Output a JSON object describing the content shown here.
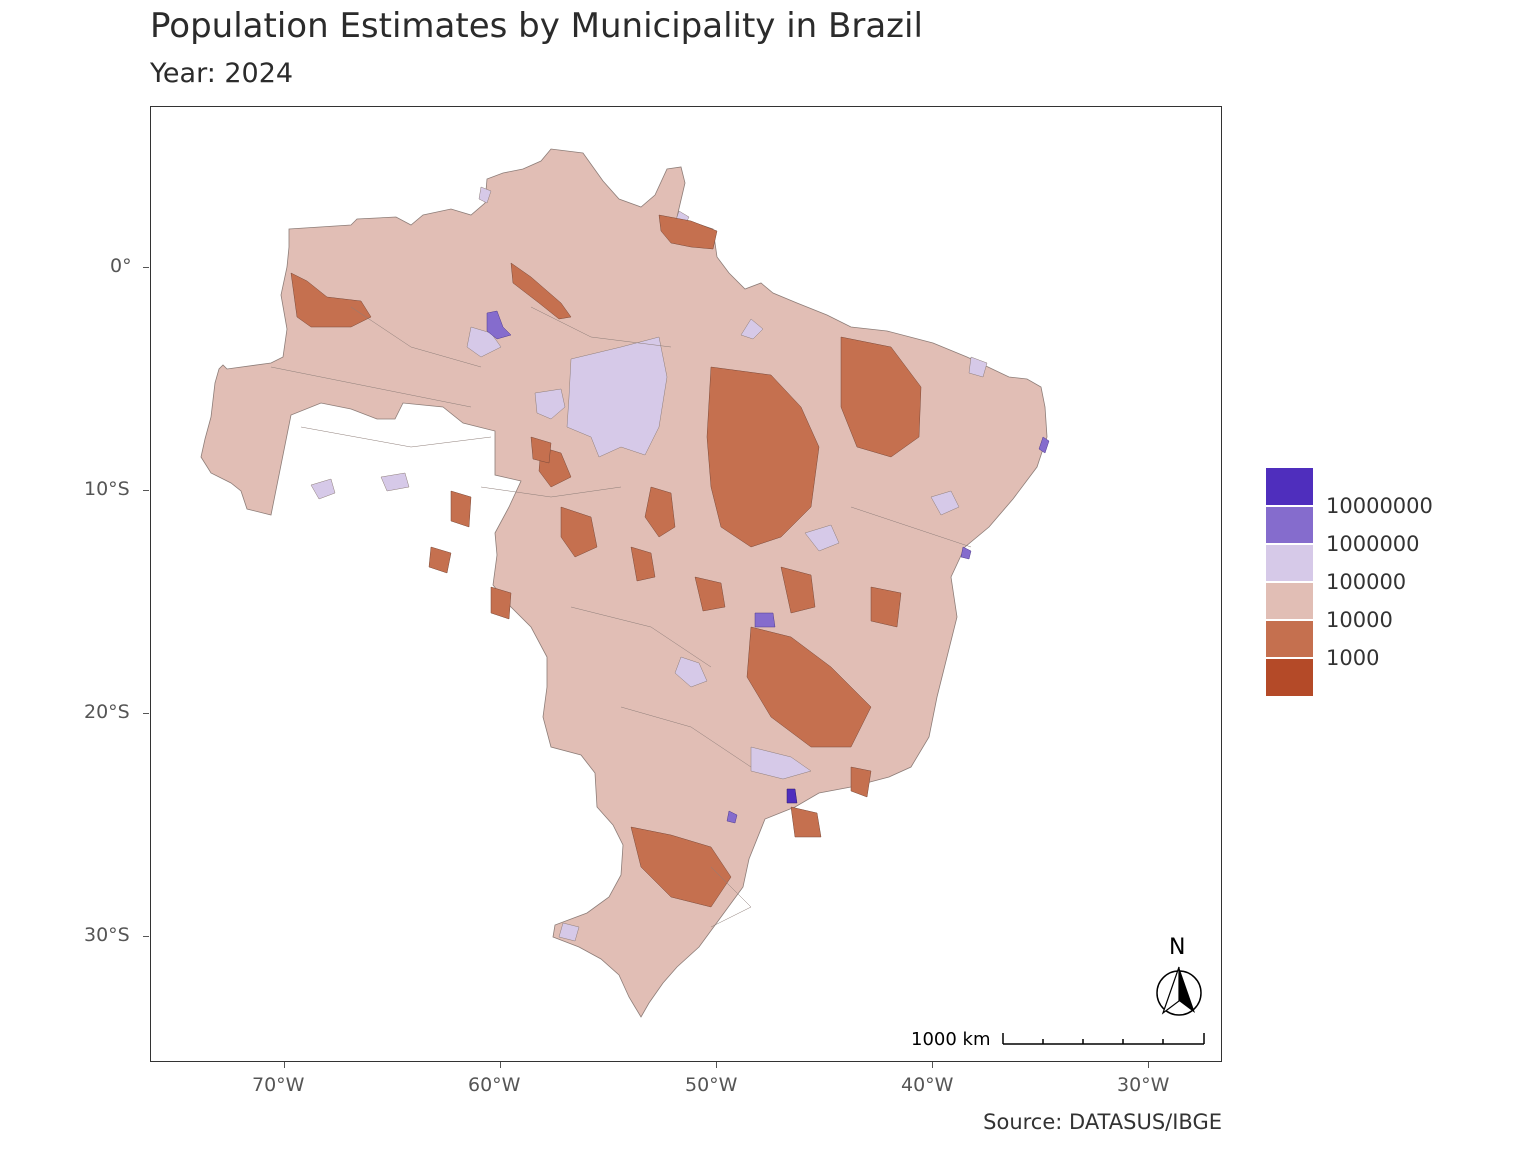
{
  "header": {
    "title": "Population Estimates by Municipality in Brazil",
    "subtitle": "Year: 2024"
  },
  "axes": {
    "y_labels": [
      "0°",
      "10°S",
      "20°S",
      "30°S"
    ],
    "x_labels": [
      "70°W",
      "60°W",
      "50°W",
      "40°W",
      "30°W"
    ]
  },
  "legend": {
    "items": [
      {
        "label": "10000000",
        "color": "#4f2ebd"
      },
      {
        "label": "1000000",
        "color": "#856ccd"
      },
      {
        "label": "100000",
        "color": "#d6c9e8"
      },
      {
        "label": "10000",
        "color": "#e1beb5"
      },
      {
        "label": "1000",
        "color": "#c5704f"
      },
      {
        "label": "",
        "color": "#b44a28"
      }
    ]
  },
  "scale_bar": {
    "label": "1000 km"
  },
  "north_arrow": {
    "label": "N",
    "icon": "north-arrow-icon"
  },
  "caption": "Source: DATASUS/IBGE",
  "colors": {
    "land": "#e1beb5",
    "low": "#c5704f",
    "mid_purple": "#d6c9e8",
    "high_purple": "#856ccd",
    "top_purple": "#4f2ebd"
  }
}
